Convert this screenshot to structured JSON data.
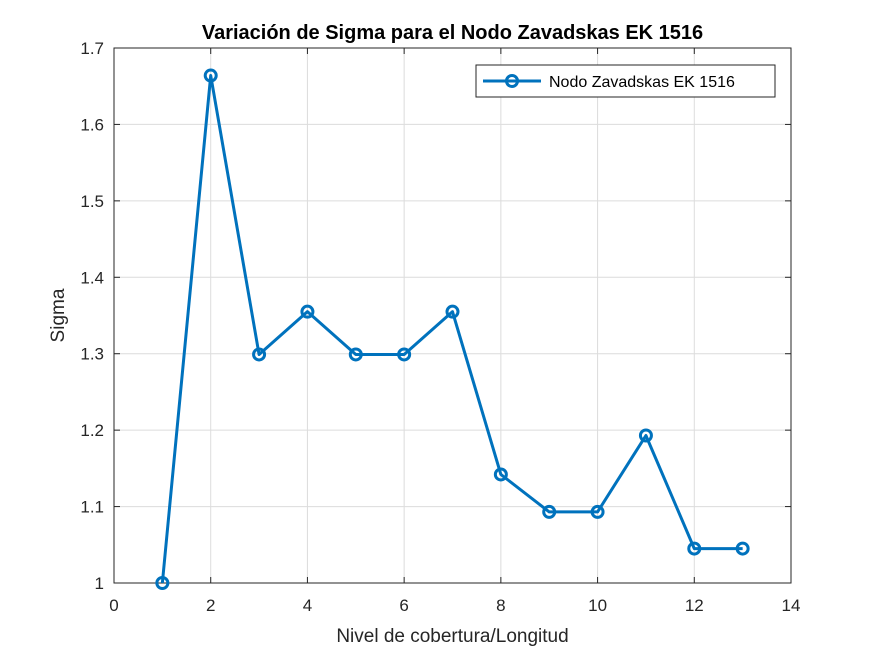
{
  "chart_data": {
    "type": "line",
    "title": "Variación de Sigma para el Nodo Zavadskas EK 1516",
    "xlabel": "Nivel de cobertura/Longitud",
    "ylabel": "Sigma",
    "xlim": [
      0,
      14
    ],
    "ylim": [
      1,
      1.7
    ],
    "xticks": [
      0,
      2,
      4,
      6,
      8,
      10,
      12,
      14
    ],
    "xtick_labels": [
      "0",
      "2",
      "4",
      "6",
      "8",
      "10",
      "12",
      "14"
    ],
    "yticks": [
      1,
      1.1,
      1.2,
      1.3,
      1.4,
      1.5,
      1.6,
      1.7
    ],
    "ytick_labels": [
      "1",
      "1.1",
      "1.2",
      "1.3",
      "1.4",
      "1.5",
      "1.6",
      "1.7"
    ],
    "grid": true,
    "legend_position": "top-right",
    "series": [
      {
        "name": "Nodo Zavadskas EK 1516",
        "color": "#0072BD",
        "marker": "circle",
        "x": [
          1,
          2,
          3,
          4,
          5,
          6,
          7,
          8,
          9,
          10,
          11,
          12,
          13
        ],
        "y": [
          1.0,
          1.664,
          1.299,
          1.355,
          1.299,
          1.299,
          1.355,
          1.142,
          1.093,
          1.093,
          1.193,
          1.045,
          1.045
        ]
      }
    ]
  }
}
